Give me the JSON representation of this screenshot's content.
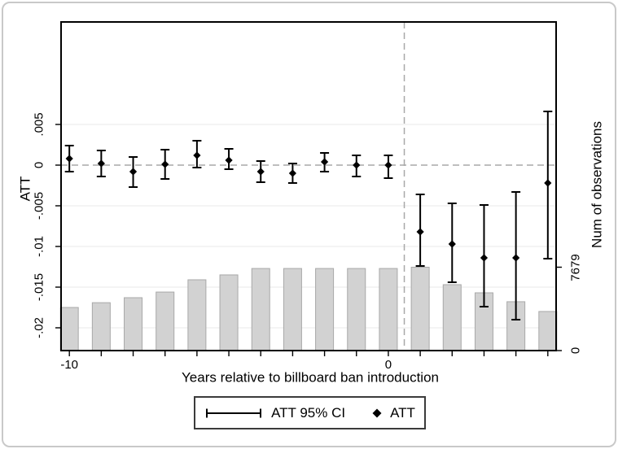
{
  "chart_data": {
    "type": "combo",
    "subtype": "event-study with error bars (diamonds, 95% CI) and observation-count bars",
    "x_title": "Years relative to billboard ban introduction",
    "y_left_title": "ATT",
    "y_right_title": "Num of observations",
    "x": [
      -10,
      -9,
      -8,
      -7,
      -6,
      -5,
      -4,
      -3,
      -2,
      -1,
      0,
      1,
      2,
      3,
      4,
      5
    ],
    "series": [
      {
        "name": "ATT",
        "marker": "diamond",
        "axis": "left",
        "values": [
          0.0008,
          0.0002,
          -0.0008,
          0.0001,
          0.0012,
          0.0006,
          -0.0008,
          -0.001,
          0.0004,
          0.0,
          0.0,
          -0.0082,
          -0.0097,
          -0.0114,
          -0.0114,
          -0.0022
        ]
      },
      {
        "name": "ATT 95% CI lower",
        "axis": "left",
        "values": [
          -0.0008,
          -0.0014,
          -0.0027,
          -0.0017,
          -0.0003,
          -0.0005,
          -0.0021,
          -0.0022,
          -0.0008,
          -0.0014,
          -0.0016,
          -0.0124,
          -0.0144,
          -0.0174,
          -0.019,
          -0.0115
        ]
      },
      {
        "name": "ATT 95% CI upper",
        "axis": "left",
        "values": [
          0.0024,
          0.0018,
          0.001,
          0.0019,
          0.003,
          0.002,
          0.0005,
          0.0002,
          0.0015,
          0.0012,
          0.0012,
          -0.0036,
          -0.0047,
          -0.0049,
          -0.0033,
          0.0066
        ]
      },
      {
        "name": "Num of observations",
        "type": "bar",
        "axis": "right",
        "values": [
          3970,
          4410,
          4870,
          5390,
          6520,
          6970,
          7560,
          7560,
          7560,
          7560,
          7560,
          7679,
          6070,
          5320,
          4500,
          3600
        ]
      }
    ],
    "y_left_ticks": [
      {
        "value": 0.005,
        "label": ".005"
      },
      {
        "value": 0,
        "label": "0"
      },
      {
        "value": -0.005,
        "label": "-.005"
      },
      {
        "value": -0.01,
        "label": "-.01"
      },
      {
        "value": -0.015,
        "label": "-.015"
      },
      {
        "value": -0.02,
        "label": "-.02"
      }
    ],
    "y_right_ticks": [
      {
        "value": 7679,
        "label": "7679"
      },
      {
        "value": 0,
        "label": "0"
      }
    ],
    "x_labeled_ticks": [
      {
        "value": -10,
        "label": "-10"
      },
      {
        "value": 0,
        "label": "0"
      }
    ],
    "y_left_range": [
      -0.0228,
      0.0176
    ],
    "x_range": [
      -10.26,
      5.26
    ],
    "grid": "horizontal on labeled left ticks",
    "reference_lines": {
      "horizontal_at_y": 0,
      "vertical_at_x": 0.5,
      "style": "dashed"
    },
    "legend": {
      "position": "bottom-center",
      "ci_label": "ATT 95% CI",
      "att_label": "ATT"
    }
  },
  "colors": {
    "marker": "#000000",
    "bar_fill": "#d2d2d2",
    "bar_stroke": "#a8a8a8",
    "gridline": "#e8e8e8",
    "reference_dash": "#a8a8a8",
    "frame": "#000000",
    "tick": "#000000",
    "legend_border": "#3b3b3b",
    "figure_border": "#c9c9c9",
    "text": "#000000",
    "background": "#ffffff"
  }
}
